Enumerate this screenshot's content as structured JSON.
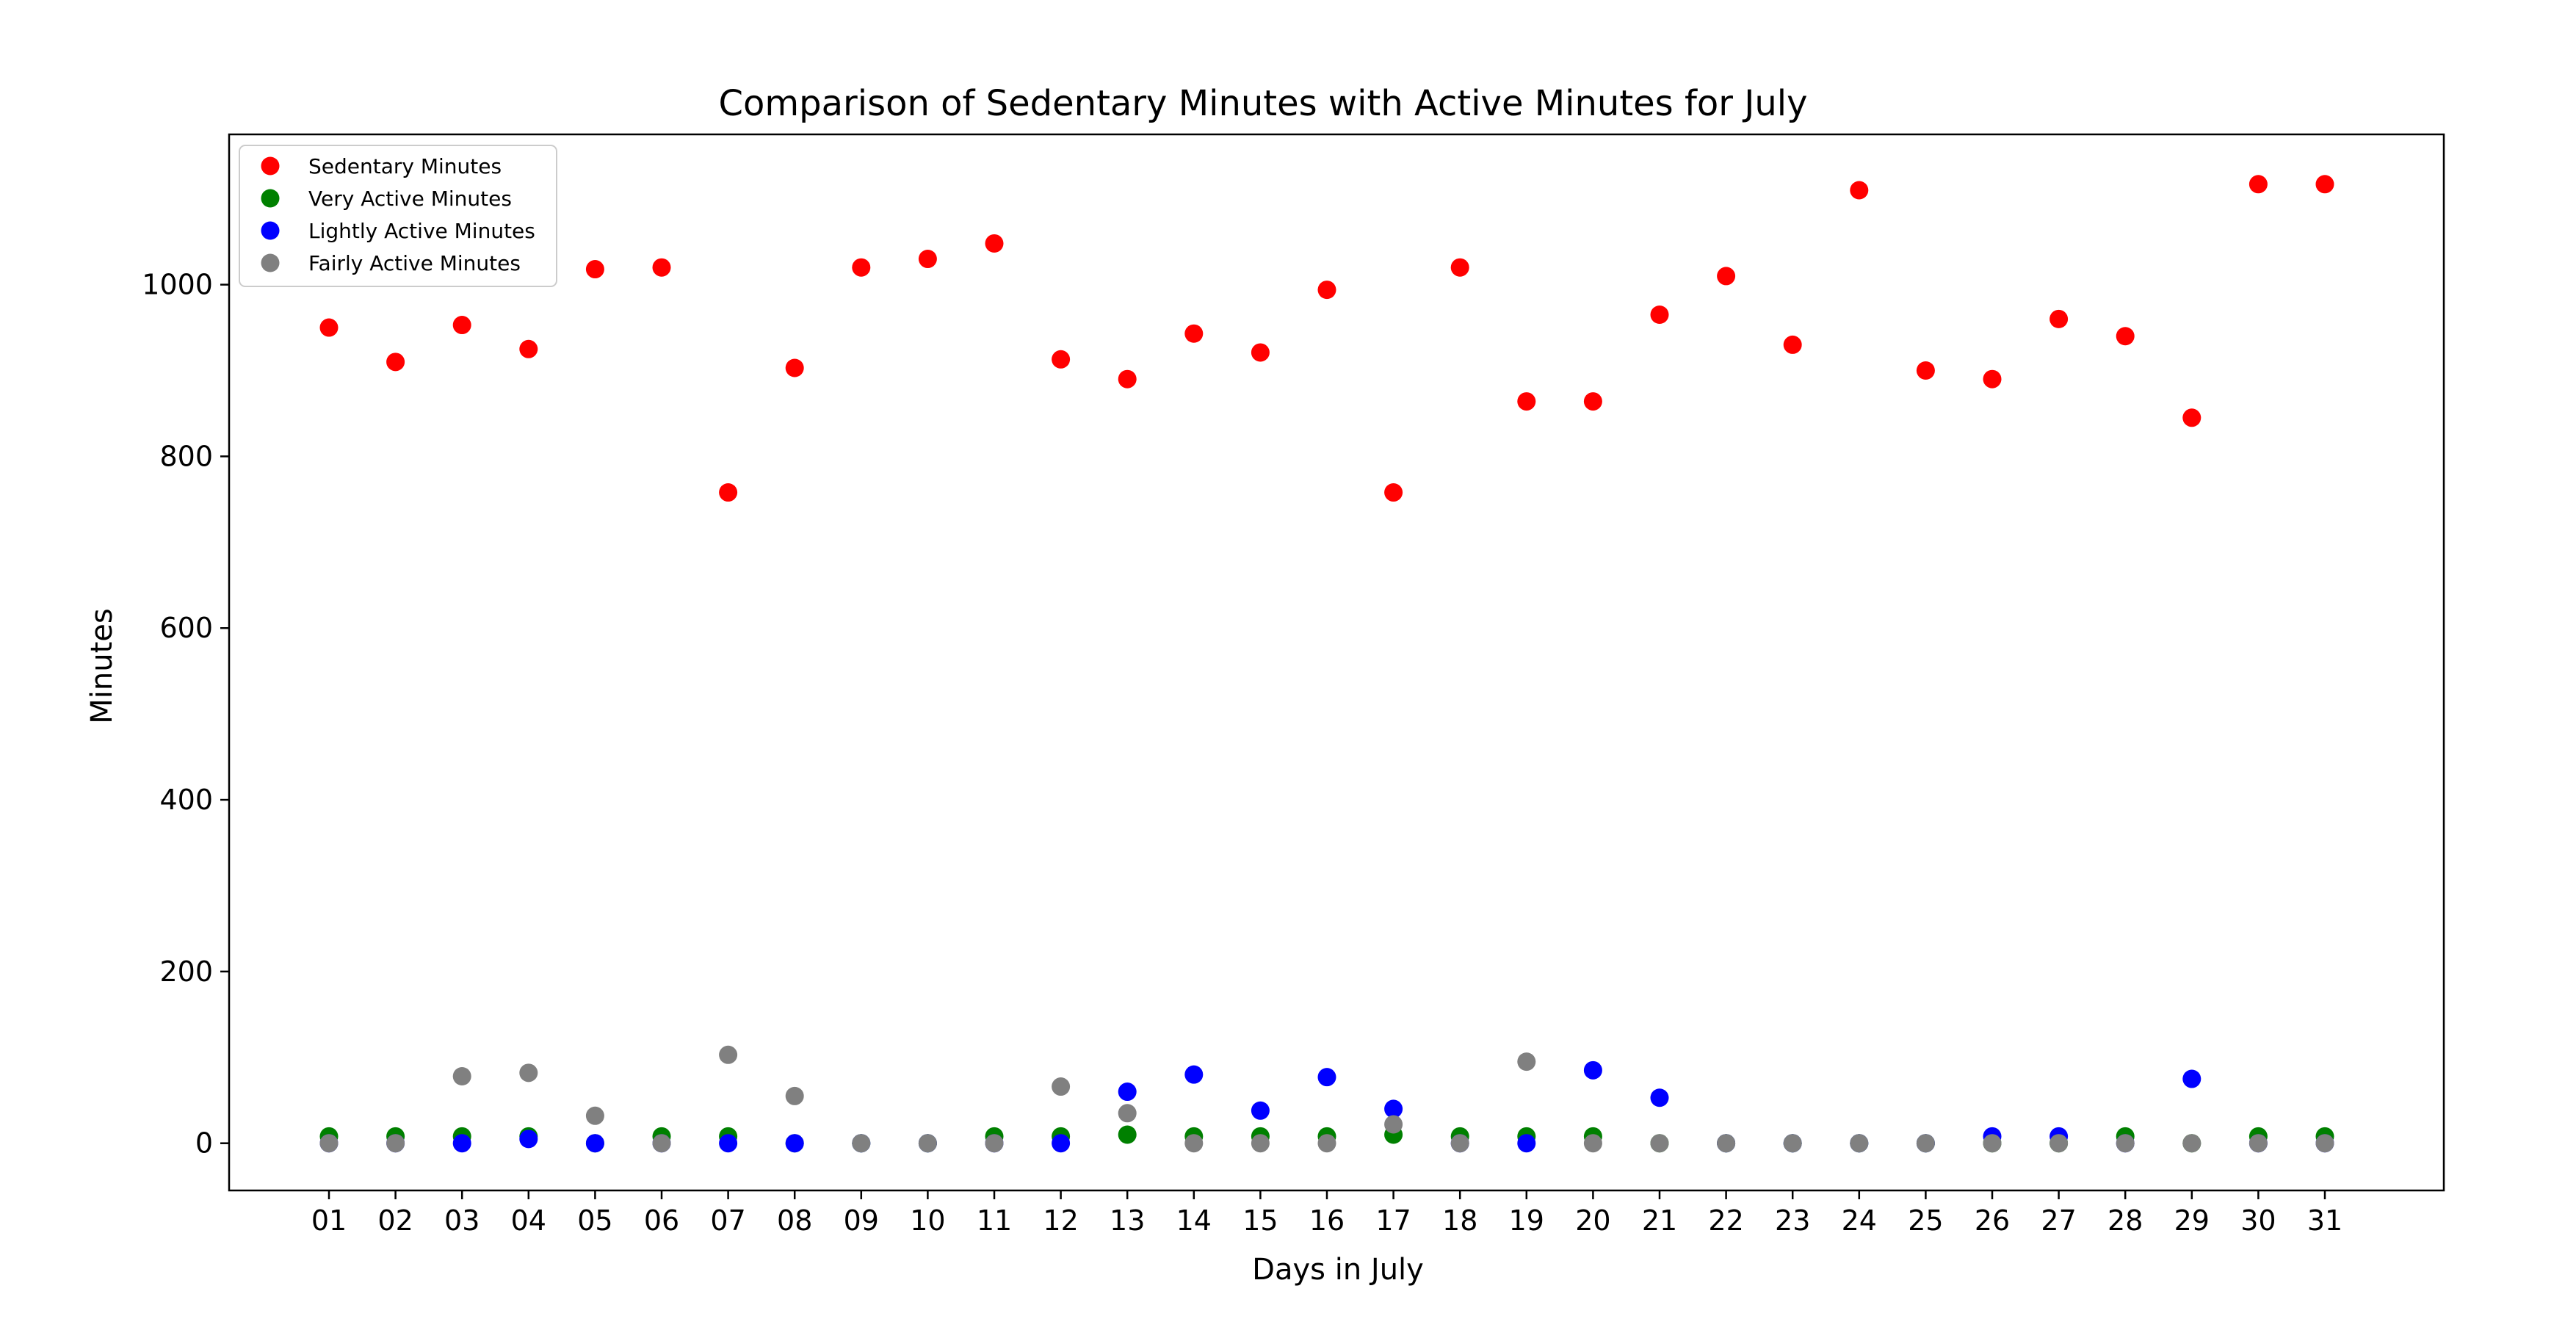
{
  "chart_data": {
    "type": "scatter",
    "title": "Comparison of Sedentary Minutes with Active Minutes for July",
    "xlabel": "Days in July",
    "ylabel": "Minutes",
    "x": [
      "01",
      "02",
      "03",
      "04",
      "05",
      "06",
      "07",
      "08",
      "09",
      "10",
      "11",
      "12",
      "13",
      "14",
      "15",
      "16",
      "17",
      "18",
      "19",
      "20",
      "21",
      "22",
      "23",
      "24",
      "25",
      "26",
      "27",
      "28",
      "29",
      "30",
      "31"
    ],
    "yticks": [
      0,
      200,
      400,
      600,
      800,
      1000
    ],
    "ylim": [
      -55,
      1175
    ],
    "grid": false,
    "legend_position": "top-left",
    "series": [
      {
        "name": "Sedentary Minutes",
        "color": "#ff0000",
        "values": [
          950,
          910,
          953,
          925,
          1018,
          1020,
          758,
          903,
          1020,
          1030,
          1048,
          913,
          890,
          943,
          921,
          994,
          758,
          1020,
          864,
          864,
          965,
          1010,
          930,
          1110,
          900,
          890,
          960,
          940,
          845,
          1117,
          1117
        ]
      },
      {
        "name": "Very Active Minutes",
        "color": "#008000",
        "values": [
          8,
          8,
          8,
          8,
          0,
          8,
          8,
          0,
          0,
          0,
          8,
          8,
          10,
          8,
          8,
          8,
          10,
          8,
          8,
          8,
          0,
          0,
          0,
          0,
          0,
          0,
          0,
          8,
          0,
          8,
          8
        ]
      },
      {
        "name": "Lightly Active Minutes",
        "color": "#0000ff",
        "values": [
          0,
          0,
          0,
          5,
          0,
          0,
          0,
          0,
          0,
          0,
          0,
          0,
          60,
          80,
          38,
          77,
          40,
          0,
          0,
          85,
          53,
          0,
          0,
          0,
          0,
          8,
          8,
          0,
          75,
          0,
          0
        ]
      },
      {
        "name": "Fairly Active Minutes",
        "color": "#808080",
        "values": [
          0,
          0,
          78,
          82,
          32,
          0,
          103,
          55,
          0,
          0,
          0,
          66,
          35,
          0,
          0,
          0,
          22,
          0,
          95,
          0,
          0,
          0,
          0,
          0,
          0,
          0,
          0,
          0,
          0,
          0,
          0
        ]
      }
    ]
  }
}
